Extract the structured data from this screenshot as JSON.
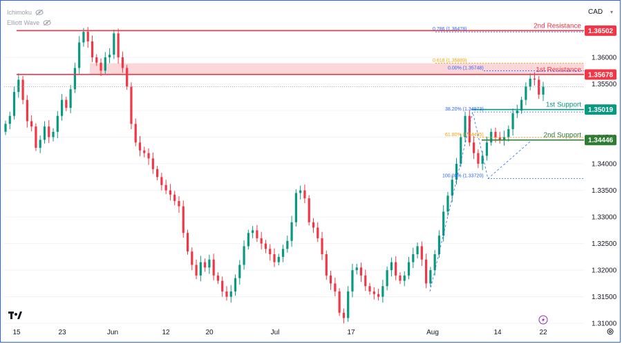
{
  "chart_data": {
    "type": "candlestick",
    "symbol_currency": "CAD",
    "indicators": [
      {
        "name": "Ichimoku",
        "icon": "eye-off-icon"
      },
      {
        "name": "Elliott Wave",
        "icon": "eye-off-icon"
      }
    ],
    "y_axis": {
      "ticks": [
        "1.36000",
        "1.35500",
        "1.35000",
        "1.34500",
        "1.34000",
        "1.33500",
        "1.33000",
        "1.32500",
        "1.32000",
        "1.31500",
        "1.31000"
      ],
      "range": [
        1.3095,
        1.37
      ]
    },
    "x_axis": {
      "ticks": [
        "15",
        "23",
        "Jun",
        "12",
        "20",
        "Jul",
        "17",
        "Aug",
        "14",
        "22"
      ]
    },
    "levels": [
      {
        "label": "2nd Resistance",
        "price": "1.36502",
        "value": 1.36502,
        "color": "#f23645",
        "kind": "resistance"
      },
      {
        "label": "1st Resistance",
        "price": "1.35678",
        "value": 1.35678,
        "color": "#f23645",
        "kind": "resistance"
      },
      {
        "label": "1st Support",
        "price": "1.35019",
        "value": 1.35019,
        "color": "#089981",
        "kind": "support"
      },
      {
        "label": "2nd Support",
        "price": "1.34446",
        "value": 1.34446,
        "color": "#2e7d32",
        "kind": "support"
      }
    ],
    "fib_labels": [
      {
        "text": "0.786 (1.36478)",
        "value": 1.36478,
        "color": "#2962ff"
      },
      {
        "text": "0.618 (1.35889)",
        "value": 1.35889,
        "color": "#f59f00"
      },
      {
        "text": "0.00% (1.35748)",
        "value": 1.35748,
        "color": "#2962ff"
      },
      {
        "text": "38.20% (1.34973)",
        "value": 1.34973,
        "color": "#2962ff"
      },
      {
        "text": "61.80% (1.34495)",
        "value": 1.34495,
        "color": "#f59f00"
      },
      {
        "text": "100.00% (1.33720)",
        "value": 1.3372,
        "color": "#2962ff"
      }
    ],
    "closes": [
      1.3475,
      1.349,
      1.3535,
      1.3558,
      1.352,
      1.348,
      1.347,
      1.343,
      1.3445,
      1.347,
      1.345,
      1.346,
      1.349,
      1.352,
      1.3505,
      1.354,
      1.358,
      1.3628,
      1.3648,
      1.363,
      1.36,
      1.359,
      1.3575,
      1.36,
      1.3605,
      1.3645,
      1.36,
      1.358,
      1.3545,
      1.3475,
      1.344,
      1.3425,
      1.342,
      1.341,
      1.339,
      1.3375,
      1.336,
      1.335,
      1.3342,
      1.333,
      1.332,
      1.327,
      1.3235,
      1.321,
      1.319,
      1.3215,
      1.3205,
      1.322,
      1.319,
      1.318,
      1.316,
      1.315,
      1.316,
      1.3185,
      1.321,
      1.3245,
      1.327,
      1.3275,
      1.326,
      1.325,
      1.324,
      1.323,
      1.3215,
      1.3225,
      1.324,
      1.3255,
      1.329,
      1.3345,
      1.335,
      1.3335,
      1.329,
      1.328,
      1.326,
      1.323,
      1.319,
      1.3175,
      1.316,
      1.312,
      1.311,
      1.316,
      1.32,
      1.3205,
      1.319,
      1.317,
      1.316,
      1.3155,
      1.315,
      1.317,
      1.32,
      1.3215,
      1.319,
      1.318,
      1.319,
      1.3215,
      1.323,
      1.3245,
      1.322,
      1.3175,
      1.32,
      1.323,
      1.3265,
      1.331,
      1.334,
      1.337,
      1.34,
      1.345,
      1.349,
      1.344,
      1.342,
      1.34,
      1.3415,
      1.344,
      1.346,
      1.345,
      1.3445,
      1.345,
      1.3465,
      1.3495,
      1.35,
      1.352,
      1.3545,
      1.356,
      1.3558,
      1.353,
      1.3545
    ],
    "forecast_path": [
      {
        "label": "start",
        "value": 1.316
      },
      {
        "label": "high",
        "value": 1.34973
      },
      {
        "label": "low",
        "value": 1.3372
      },
      {
        "label": "end",
        "value": 1.3445
      }
    ],
    "current_price": 1.3545
  }
}
